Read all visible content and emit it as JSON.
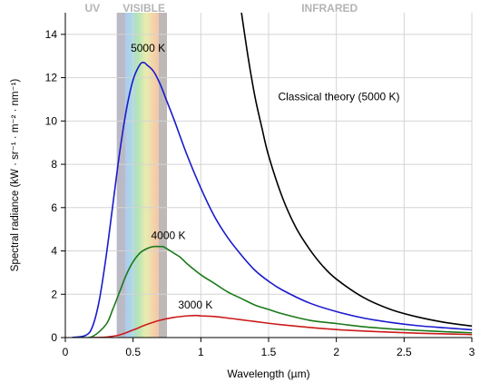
{
  "chart_data": {
    "type": "line",
    "title": "",
    "xlabel": "Wavelength (µm)",
    "ylabel": "Spectral radiance (kW · sr⁻¹ · m⁻² · nm⁻¹)",
    "xlim": [
      0,
      3
    ],
    "ylim": [
      0,
      15
    ],
    "grid": true,
    "x_ticks": [
      0,
      0.5,
      1,
      1.5,
      2,
      2.5,
      3
    ],
    "x_tick_labels": [
      "0",
      "0.5",
      "1",
      "1.5",
      "2",
      "2.5",
      "3"
    ],
    "y_ticks": [
      0,
      2,
      4,
      6,
      8,
      10,
      12,
      14
    ],
    "y_tick_labels": [
      "0",
      "2",
      "4",
      "6",
      "8",
      "10",
      "12",
      "14"
    ],
    "regions": [
      {
        "label": "UV",
        "x_center": 0.2
      },
      {
        "label": "VISIBLE",
        "x_center": 0.58
      },
      {
        "label": "INFRARED",
        "x_center": 1.95
      }
    ],
    "visible_band": [
      0.38,
      0.75
    ],
    "series": [
      {
        "name": "5000 K",
        "color": "#1a1acc",
        "x": [
          0.05,
          0.15,
          0.2,
          0.25,
          0.3,
          0.35,
          0.4,
          0.45,
          0.5,
          0.55,
          0.58,
          0.6,
          0.65,
          0.7,
          0.75,
          0.8,
          0.9,
          1.0,
          1.1,
          1.2,
          1.3,
          1.4,
          1.5,
          1.6,
          1.8,
          2.0,
          2.2,
          2.4,
          2.6,
          2.8,
          3.0
        ],
        "y": [
          0.0,
          0.1,
          0.5,
          1.7,
          3.7,
          6.1,
          8.5,
          10.5,
          11.9,
          12.6,
          12.7,
          12.6,
          12.3,
          11.7,
          10.9,
          10.1,
          8.4,
          6.9,
          5.6,
          4.6,
          3.8,
          3.1,
          2.6,
          2.2,
          1.6,
          1.2,
          0.9,
          0.7,
          0.55,
          0.45,
          0.36
        ]
      },
      {
        "name": "4000 K",
        "color": "#1a7a1a",
        "x": [
          0.1,
          0.2,
          0.3,
          0.35,
          0.4,
          0.45,
          0.5,
          0.55,
          0.6,
          0.65,
          0.7,
          0.72,
          0.75,
          0.8,
          0.85,
          0.9,
          1.0,
          1.1,
          1.2,
          1.3,
          1.4,
          1.5,
          1.6,
          1.8,
          2.0,
          2.2,
          2.4,
          2.6,
          2.8,
          3.0
        ],
        "y": [
          0.0,
          0.05,
          0.6,
          1.3,
          2.1,
          2.9,
          3.5,
          3.9,
          4.1,
          4.2,
          4.2,
          4.2,
          4.1,
          3.9,
          3.7,
          3.4,
          2.9,
          2.5,
          2.1,
          1.8,
          1.5,
          1.3,
          1.1,
          0.8,
          0.65,
          0.5,
          0.4,
          0.33,
          0.27,
          0.22
        ]
      },
      {
        "name": "3000 K",
        "color": "#cc1a1a",
        "x": [
          0.2,
          0.3,
          0.4,
          0.5,
          0.6,
          0.7,
          0.8,
          0.9,
          0.97,
          1.0,
          1.1,
          1.2,
          1.3,
          1.4,
          1.5,
          1.6,
          1.8,
          2.0,
          2.2,
          2.4,
          2.6,
          2.8,
          3.0
        ],
        "y": [
          0.0,
          0.02,
          0.12,
          0.35,
          0.6,
          0.8,
          0.93,
          1.0,
          1.02,
          1.0,
          0.97,
          0.9,
          0.82,
          0.74,
          0.66,
          0.59,
          0.47,
          0.37,
          0.3,
          0.25,
          0.2,
          0.17,
          0.14
        ]
      },
      {
        "name": "Classical theory (5000 K)",
        "color": "#000000",
        "x": [
          1.3,
          1.35,
          1.4,
          1.45,
          1.5,
          1.6,
          1.7,
          1.8,
          1.9,
          2.0,
          2.2,
          2.4,
          2.6,
          2.8,
          3.0
        ],
        "y": [
          15.0,
          12.9,
          11.1,
          9.7,
          8.4,
          6.5,
          5.1,
          4.1,
          3.3,
          2.7,
          1.85,
          1.3,
          0.95,
          0.7,
          0.53
        ]
      }
    ],
    "annotations": [
      {
        "text": "5000 K",
        "x": 0.61,
        "y": 13.2
      },
      {
        "text": "4000 K",
        "x": 0.76,
        "y": 4.55
      },
      {
        "text": "3000 K",
        "x": 0.96,
        "y": 1.35
      },
      {
        "text": "Classical theory (5000 K)",
        "x": 1.57,
        "y": 10.95
      }
    ]
  }
}
